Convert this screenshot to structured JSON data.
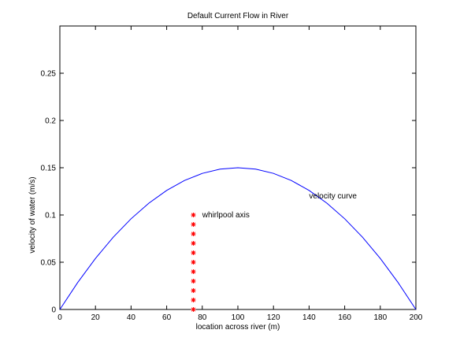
{
  "chart_data": {
    "type": "line",
    "title": "Default Current Flow in River",
    "xlabel": "location across river (m)",
    "ylabel": "velocity of water (m/s)",
    "xlim": [
      0,
      200
    ],
    "ylim": [
      0,
      0.3
    ],
    "xticks": [
      "0",
      "20",
      "40",
      "60",
      "80",
      "100",
      "120",
      "140",
      "160",
      "180",
      "200"
    ],
    "yticks": [
      "0",
      "0.05",
      "0.1",
      "0.15",
      "0.2",
      "0.25"
    ],
    "grid": false,
    "series": [
      {
        "kind": "line",
        "color": "#0000ff",
        "x": [
          0,
          10,
          20,
          30,
          40,
          50,
          60,
          70,
          80,
          90,
          100,
          110,
          120,
          130,
          140,
          150,
          160,
          170,
          180,
          190,
          200
        ],
        "y": [
          0,
          0.0285,
          0.054,
          0.0765,
          0.096,
          0.1125,
          0.126,
          0.1365,
          0.144,
          0.1485,
          0.15,
          0.1485,
          0.144,
          0.1365,
          0.126,
          0.1125,
          0.096,
          0.0765,
          0.054,
          0.0285,
          0
        ]
      },
      {
        "kind": "scatter",
        "marker": "*",
        "color": "#ff0000",
        "x": [
          75,
          75,
          75,
          75,
          75,
          75,
          75,
          75,
          75,
          75,
          75
        ],
        "y": [
          0,
          0.01,
          0.02,
          0.03,
          0.04,
          0.05,
          0.06,
          0.07,
          0.08,
          0.09,
          0.1
        ]
      }
    ],
    "annotations": [
      {
        "text": "velocity curve",
        "x": 140,
        "y": 0.12
      },
      {
        "text": "whirlpool axis",
        "x": 80,
        "y": 0.1
      }
    ]
  }
}
